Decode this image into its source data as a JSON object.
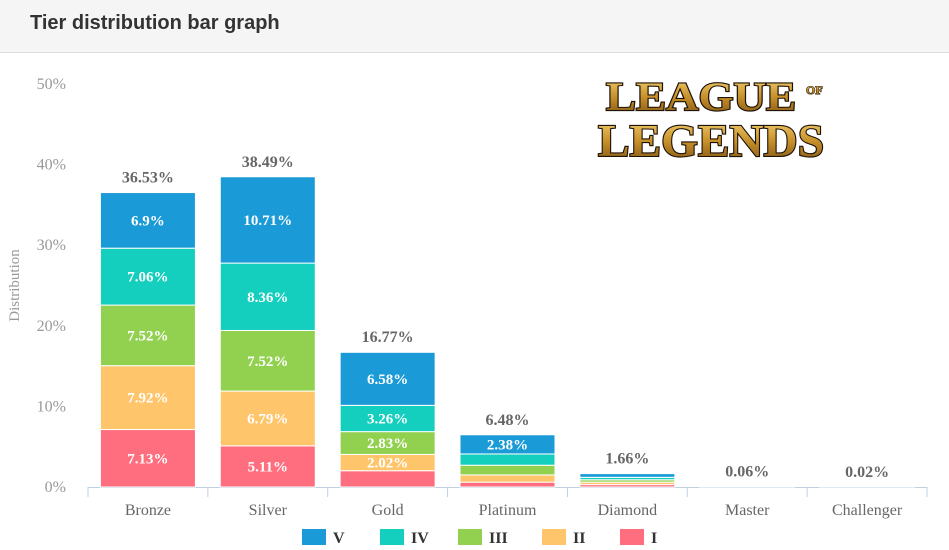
{
  "header": {
    "title": "Tier distribution bar graph"
  },
  "logo": {
    "line1": "LEAGUE",
    "of": "OF",
    "line2": "LEGENDS"
  },
  "colors": {
    "V": "#1a9ad6",
    "IV": "#14cfbe",
    "III": "#92d050",
    "II": "#ffc56b",
    "I": "#ff6e7f"
  },
  "chart_data": {
    "type": "bar",
    "stacked": true,
    "categories": [
      "Bronze",
      "Silver",
      "Gold",
      "Platinum",
      "Diamond",
      "Master",
      "Challenger"
    ],
    "totals": [
      "36.53%",
      "38.49%",
      "16.77%",
      "6.48%",
      "1.66%",
      "0.06%",
      "0.02%"
    ],
    "total_values": [
      36.53,
      38.49,
      16.77,
      6.48,
      1.66,
      0.06,
      0.02
    ],
    "series": [
      {
        "name": "I",
        "values": [
          7.13,
          5.11,
          2.02,
          0.6,
          0.3,
          0,
          0
        ],
        "labels": [
          "7.13%",
          "5.11%",
          "",
          "",
          "",
          "",
          ""
        ]
      },
      {
        "name": "II",
        "values": [
          7.92,
          6.79,
          2.02,
          0.9,
          0.3,
          0,
          0
        ],
        "labels": [
          "7.92%",
          "6.79%",
          "2.02%",
          "",
          "",
          "",
          ""
        ]
      },
      {
        "name": "III",
        "values": [
          7.52,
          7.52,
          2.83,
          1.2,
          0.3,
          0,
          0
        ],
        "labels": [
          "7.52%",
          "7.52%",
          "2.83%",
          "",
          "",
          "",
          ""
        ]
      },
      {
        "name": "IV",
        "values": [
          7.06,
          8.36,
          3.26,
          1.4,
          0.3,
          0,
          0
        ],
        "labels": [
          "7.06%",
          "8.36%",
          "3.26%",
          "",
          "",
          "",
          ""
        ]
      },
      {
        "name": "V",
        "values": [
          6.9,
          10.71,
          6.58,
          2.38,
          0.46,
          0.06,
          0.02
        ],
        "labels": [
          "6.9%",
          "10.71%",
          "6.58%",
          "2.38%",
          "",
          "",
          ""
        ]
      }
    ],
    "ylabel": "Distribution",
    "ylim": [
      0,
      50
    ],
    "yticks": [
      "0%",
      "10%",
      "20%",
      "30%",
      "40%",
      "50%"
    ],
    "legend": [
      "V",
      "IV",
      "III",
      "II",
      "I"
    ],
    "legend_position": "bottom",
    "grid": false
  }
}
